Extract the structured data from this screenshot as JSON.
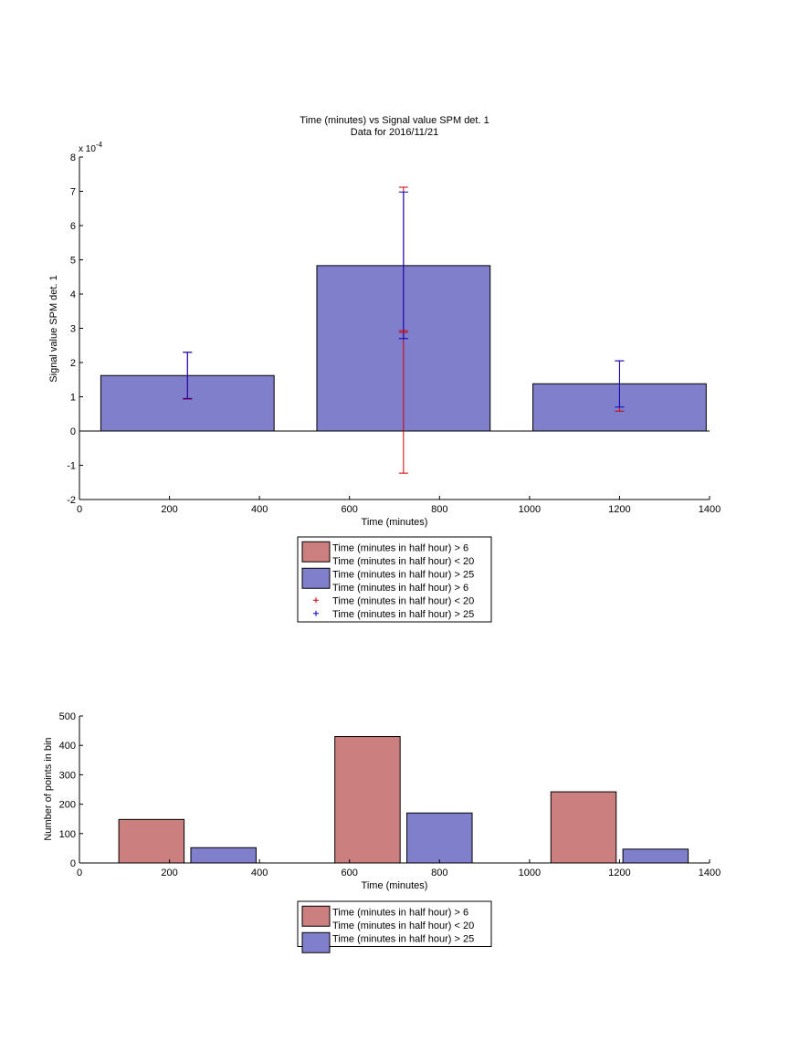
{
  "colors": {
    "bar_red": "#cc7f7f",
    "bar_blue": "#7f7fcc",
    "err_red": "#cc0000",
    "err_blue": "#0000cc",
    "axis": "#000000"
  },
  "chart_data": [
    {
      "type": "bar",
      "title": "Time (minutes) vs Signal value SPM det. 1",
      "subtitle": "Data for 2016/11/21",
      "xlabel": "Time (minutes)",
      "ylabel": "Signal value SPM det. 1",
      "exponent_label": "x 10",
      "exponent_power": "-4",
      "xlim": [
        0,
        1400
      ],
      "ylim": [
        -2,
        8
      ],
      "xticks": [
        0,
        200,
        400,
        600,
        800,
        1000,
        1200,
        1400
      ],
      "yticks": [
        -2,
        -1,
        0,
        1,
        2,
        3,
        4,
        5,
        6,
        7,
        8
      ],
      "bar_width": 385,
      "grid": false,
      "bars": [
        {
          "x": 240,
          "value": 1.62
        },
        {
          "x": 720,
          "value": 4.83
        },
        {
          "x": 1200,
          "value": 1.38
        }
      ],
      "errorbars": [
        {
          "series": "red",
          "x": 240,
          "low": 0.93,
          "high": 2.3
        },
        {
          "series": "blue",
          "x": 240,
          "low": 0.95,
          "high": 2.3
        },
        {
          "series": "red",
          "x": 720,
          "low": -1.23,
          "high": 7.12
        },
        {
          "series": "blue",
          "x": 720,
          "low": 2.7,
          "high": 6.98
        },
        {
          "series": "red",
          "x": 720,
          "low": 2.88,
          "high": 2.93
        },
        {
          "series": "red",
          "x": 1200,
          "low": 0.58,
          "high": 2.05
        },
        {
          "series": "blue",
          "x": 1200,
          "low": 0.7,
          "high": 2.05
        }
      ],
      "legend": {
        "position": "below",
        "entries": [
          {
            "kind": "patch",
            "color": "#cc7f7f",
            "label": "Time (minutes in half hour) > 6"
          },
          {
            "kind": "none",
            "label": "Time (minutes in half hour) < 20"
          },
          {
            "kind": "patch",
            "color": "#7f7fcc",
            "label": "Time (minutes in half hour) > 25"
          },
          {
            "kind": "none",
            "label": "Time (minutes in half hour) > 6"
          },
          {
            "kind": "plus",
            "color": "#cc0000",
            "label": "Time (minutes in half hour) < 20"
          },
          {
            "kind": "plus",
            "color": "#0000cc",
            "label": "Time (minutes in half hour) > 25"
          }
        ]
      }
    },
    {
      "type": "bar",
      "xlabel": "Time (minutes)",
      "ylabel": "Number of points in bin",
      "xlim": [
        0,
        1400
      ],
      "ylim": [
        0,
        500
      ],
      "xticks": [
        0,
        200,
        400,
        600,
        800,
        1000,
        1200,
        1400
      ],
      "yticks": [
        0,
        100,
        200,
        300,
        400,
        500
      ],
      "bar_width": 145,
      "grid": false,
      "series": [
        {
          "color": "#cc7f7f",
          "x": [
            160,
            640,
            1120
          ],
          "values": [
            148,
            430,
            242
          ]
        },
        {
          "color": "#7f7fcc",
          "x": [
            320,
            800,
            1280
          ],
          "values": [
            52,
            170,
            47
          ]
        }
      ],
      "legend": {
        "position": "below",
        "entries": [
          {
            "kind": "patch",
            "color": "#cc7f7f",
            "label": "Time (minutes in half hour) > 6"
          },
          {
            "kind": "none",
            "label": "Time (minutes in half hour) < 20"
          },
          {
            "kind": "patch",
            "color": "#7f7fcc",
            "label": "Time (minutes in half hour) > 25"
          }
        ]
      }
    }
  ]
}
